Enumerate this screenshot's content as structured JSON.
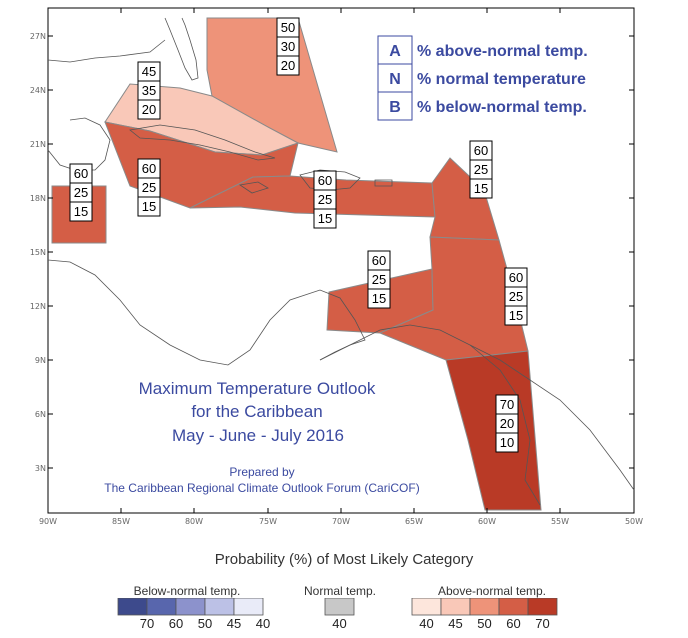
{
  "map": {
    "y_ticks": [
      "27N",
      "24N",
      "21N",
      "18N",
      "15N",
      "12N",
      "9N",
      "6N",
      "3N"
    ],
    "x_ticks": [
      "90W",
      "85W",
      "80W",
      "75W",
      "70W",
      "65W",
      "60W",
      "55W",
      "50W"
    ],
    "colors": {
      "above_45": "#f9c8b8",
      "above_50": "#ee9379",
      "above_60": "#d45e46",
      "above_70": "#b93a26",
      "region_edge": "#8a8a8a",
      "coast": "#555555"
    },
    "regions": [
      {
        "name": "bahamas",
        "probs": [
          "50",
          "30",
          "20"
        ]
      },
      {
        "name": "cuba-florida-straits",
        "probs": [
          "45",
          "35",
          "20"
        ]
      },
      {
        "name": "belize",
        "probs": [
          "60",
          "25",
          "15"
        ]
      },
      {
        "name": "cayman-jamaica",
        "probs": [
          "60",
          "25",
          "15"
        ]
      },
      {
        "name": "hispaniola-pr",
        "probs": [
          "60",
          "25",
          "15"
        ]
      },
      {
        "name": "leeward-islands",
        "probs": [
          "60",
          "25",
          "15"
        ]
      },
      {
        "name": "abc-islands",
        "probs": [
          "60",
          "25",
          "15"
        ]
      },
      {
        "name": "windward-islands",
        "probs": [
          "60",
          "25",
          "15"
        ]
      },
      {
        "name": "guianas",
        "probs": [
          "70",
          "20",
          "10"
        ]
      }
    ],
    "legend": [
      {
        "letter": "A",
        "text": "% above-normal temp."
      },
      {
        "letter": "N",
        "text": "% normal temperature"
      },
      {
        "letter": "B",
        "text": "% below-normal temp."
      }
    ],
    "title_lines": [
      "Maximum Temperature Outlook",
      "for the Caribbean",
      "May - June - July 2016"
    ],
    "credit_lines": [
      "Prepared by",
      "The Caribbean Regional Climate Outlook Forum (CariCOF)"
    ]
  },
  "colorbar": {
    "title": "Probability (%) of Most Likely Category",
    "below": {
      "label": "Below-normal temp.",
      "colors": [
        "#3d4a8c",
        "#5866ad",
        "#8c92cc",
        "#bcc1e6",
        "#e9ebf8"
      ],
      "ticks": [
        "70",
        "60",
        "50",
        "45",
        "40"
      ]
    },
    "normal": {
      "label": "Normal temp.",
      "color": "#c8c8c8",
      "ticks": [
        "40"
      ]
    },
    "above": {
      "label": "Above-normal temp.",
      "colors": [
        "#fde6dc",
        "#f9c8b8",
        "#ee9379",
        "#d45e46",
        "#b93a26"
      ],
      "ticks": [
        "40",
        "45",
        "50",
        "60",
        "70"
      ]
    }
  }
}
